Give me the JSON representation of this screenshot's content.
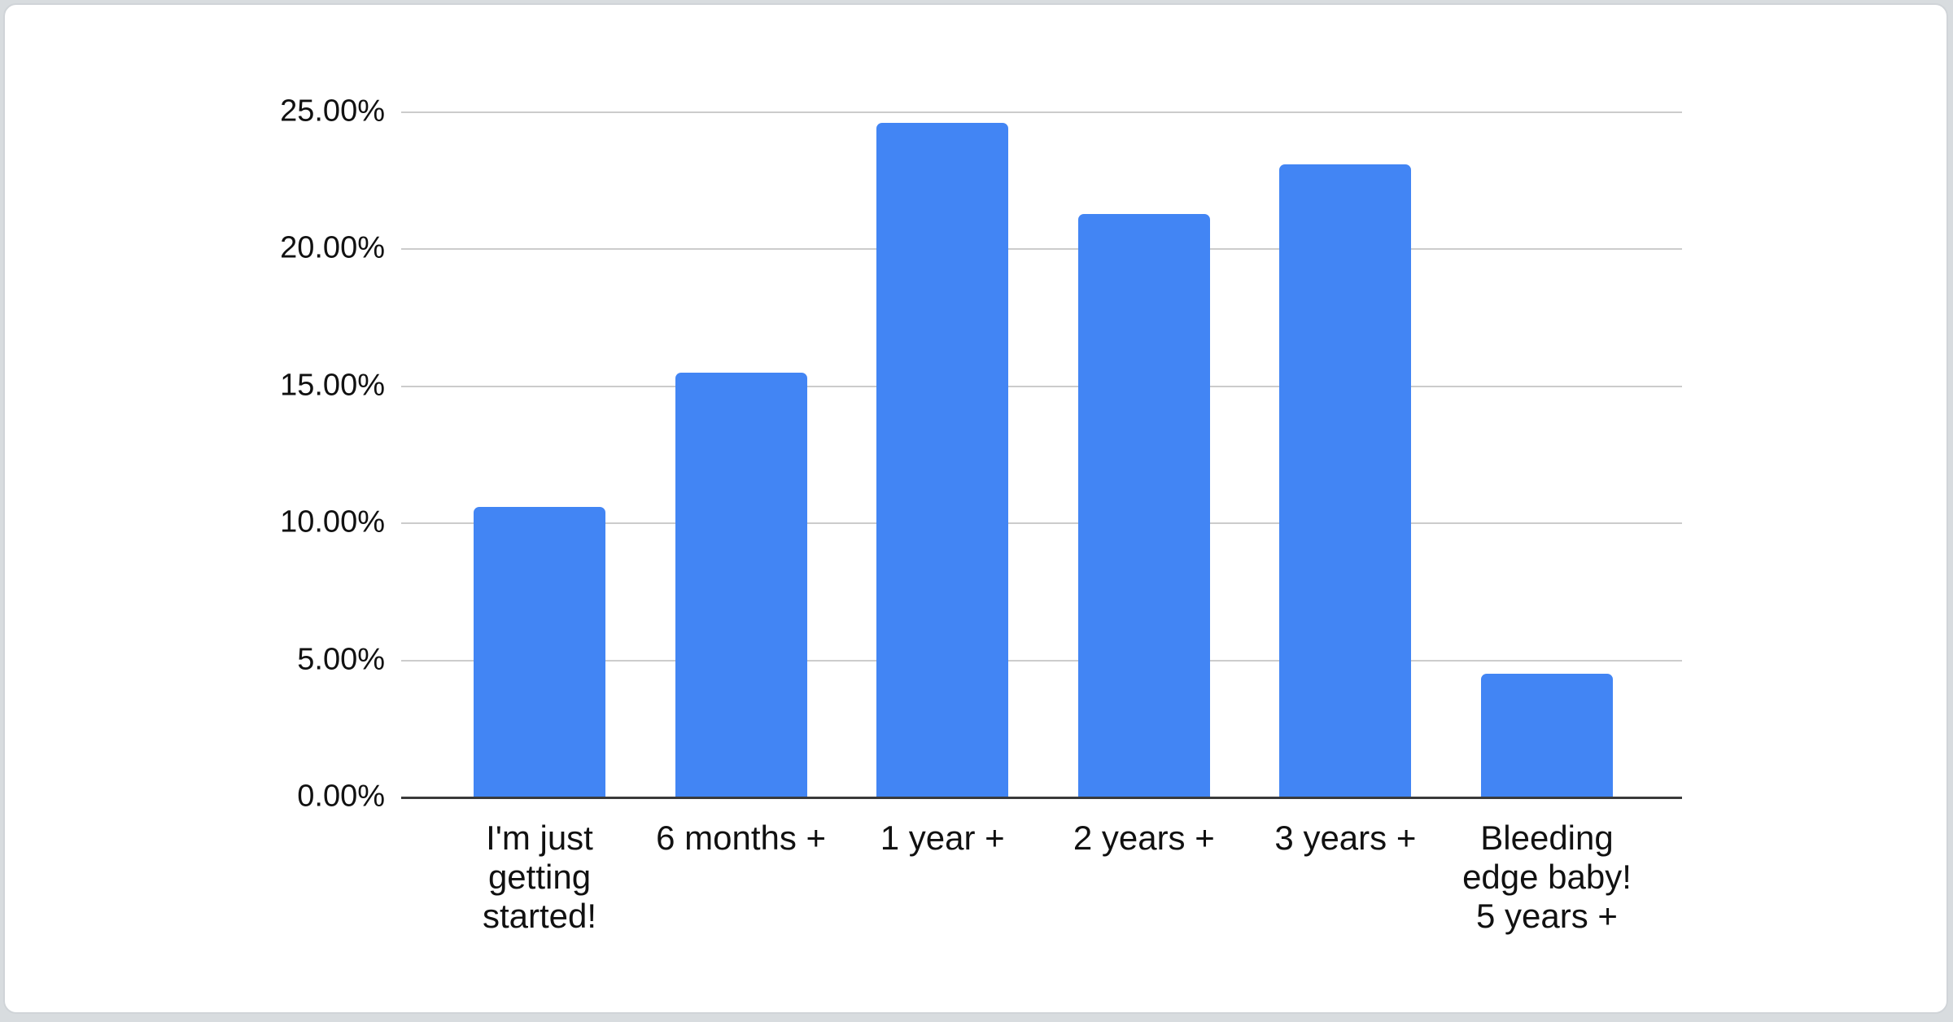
{
  "chart_data": {
    "type": "bar",
    "title": "",
    "xlabel": "",
    "ylabel": "",
    "categories": [
      "I'm just getting started!",
      "6 months +",
      "1 year +",
      "2 years +",
      "3 years +",
      "Bleeding edge baby! 5 years +"
    ],
    "category_lines": [
      [
        "I'm just",
        "getting",
        "started!"
      ],
      [
        "6 months +"
      ],
      [
        "1 year +"
      ],
      [
        "2 years +"
      ],
      [
        "3 years +"
      ],
      [
        "Bleeding",
        "edge baby!",
        "5 years +"
      ]
    ],
    "values": [
      10.6,
      15.5,
      24.6,
      21.3,
      23.1,
      4.5
    ],
    "unit": "%",
    "ylim": [
      0,
      25
    ],
    "y_tick_values": [
      0,
      5,
      10,
      15,
      20,
      25
    ],
    "y_tick_labels": [
      "0.00%",
      "5.00%",
      "10.00%",
      "15.00%",
      "20.00%",
      "25.00%"
    ],
    "grid": true,
    "legend_position": "none",
    "bar_color": "#4285F4",
    "gridline_color": "#cccccc",
    "baseline_color": "#3a3a3a",
    "label_color": "#111111",
    "card_background": "#ffffff",
    "page_background": "#d8dcdf"
  }
}
